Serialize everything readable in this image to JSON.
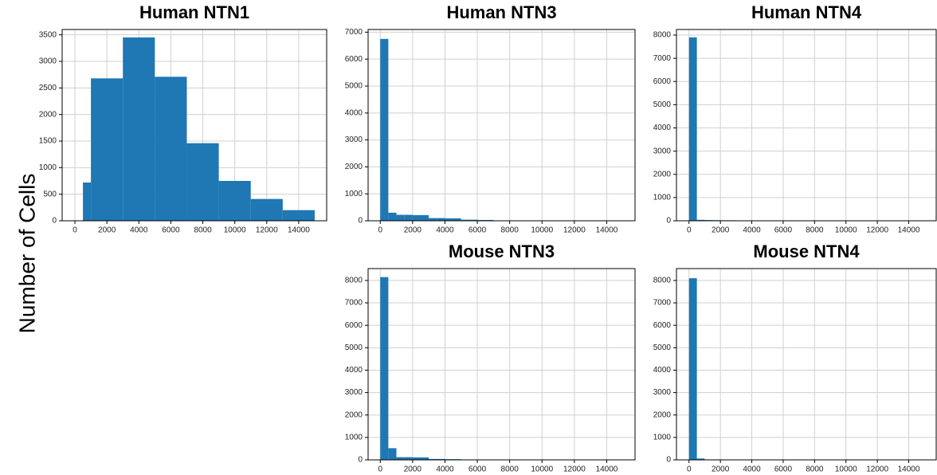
{
  "ylabel": "Number of Cells",
  "chart_data": [
    {
      "type": "histogram",
      "title": "Human NTN1",
      "color": "#1f77b4",
      "grid": true,
      "bins": [
        500,
        1000,
        3000,
        5000,
        7000,
        9000,
        11000,
        13000,
        15000
      ],
      "values": [
        720,
        2680,
        3450,
        2710,
        1460,
        750,
        410,
        200
      ],
      "xlim": [
        -800,
        15750
      ],
      "ylim": [
        0,
        3600
      ],
      "xticks": [
        0,
        2000,
        4000,
        6000,
        8000,
        10000,
        12000,
        14000
      ],
      "yticks": [
        0,
        500,
        1000,
        1500,
        2000,
        2500,
        3000,
        3500
      ]
    },
    {
      "type": "histogram",
      "title": "Human NTN3",
      "color": "#1f77b4",
      "grid": true,
      "bins": [
        0,
        500,
        1000,
        1500,
        2000,
        2500,
        3000,
        3500,
        4000,
        4500,
        5000,
        5500,
        6000,
        6500,
        7000,
        7500,
        8000,
        8500,
        9000,
        9500,
        10000,
        10500,
        11000,
        11500,
        12000,
        12500,
        13000,
        13500,
        14000,
        14500,
        15000
      ],
      "values": [
        6750,
        300,
        220,
        220,
        210,
        210,
        100,
        100,
        90,
        90,
        40,
        40,
        30,
        30,
        10,
        10,
        5,
        5,
        5,
        5,
        3,
        3,
        2,
        2,
        2,
        2,
        1,
        1,
        1,
        1
      ],
      "xlim": [
        -750,
        15750
      ],
      "ylim": [
        0,
        7100
      ],
      "xticks": [
        0,
        2000,
        4000,
        6000,
        8000,
        10000,
        12000,
        14000
      ],
      "yticks": [
        0,
        1000,
        2000,
        3000,
        4000,
        5000,
        6000,
        7000
      ]
    },
    {
      "type": "histogram",
      "title": "Human NTN4",
      "color": "#1f77b4",
      "grid": true,
      "bins": [
        0,
        500,
        1000,
        1500,
        2000,
        2500,
        3000,
        3500,
        4000,
        4500,
        5000,
        5500,
        6000,
        6500,
        7000,
        7500,
        8000,
        8500,
        9000,
        9500,
        10000,
        10500,
        11000,
        11500,
        12000,
        12500,
        13000,
        13500,
        14000,
        14500,
        15000
      ],
      "values": [
        7900,
        40,
        30,
        25,
        20,
        20,
        10,
        10,
        5,
        5,
        3,
        3,
        2,
        2,
        1,
        1,
        1,
        1,
        1,
        1,
        1,
        1,
        1,
        1,
        1,
        1,
        1,
        1,
        1,
        1
      ],
      "xlim": [
        -800,
        15750
      ],
      "ylim": [
        0,
        8240
      ],
      "xticks": [
        0,
        2000,
        4000,
        6000,
        8000,
        10000,
        12000,
        14000
      ],
      "yticks": [
        0,
        1000,
        2000,
        3000,
        4000,
        5000,
        6000,
        7000,
        8000
      ]
    },
    {
      "type": "histogram",
      "title": "Mouse NTN3",
      "color": "#1f77b4",
      "grid": true,
      "bins": [
        0,
        500,
        1000,
        1500,
        2000,
        2500,
        3000,
        3500,
        4000,
        4500,
        5000,
        5500,
        6000,
        6500,
        7000,
        7500,
        8000,
        8500,
        9000,
        9500,
        10000,
        10500,
        11000,
        11500,
        12000,
        12500,
        13000,
        13500,
        14000,
        14500,
        15000
      ],
      "values": [
        8150,
        520,
        120,
        120,
        110,
        110,
        40,
        40,
        30,
        30,
        10,
        10,
        5,
        5,
        3,
        3,
        2,
        2,
        2,
        2,
        1,
        1,
        1,
        1,
        1,
        1,
        1,
        1,
        1,
        1
      ],
      "xlim": [
        -750,
        15750
      ],
      "ylim": [
        0,
        8530
      ],
      "xticks": [
        0,
        2000,
        4000,
        6000,
        8000,
        10000,
        12000,
        14000
      ],
      "yticks": [
        0,
        1000,
        2000,
        3000,
        4000,
        5000,
        6000,
        7000,
        8000
      ]
    },
    {
      "type": "histogram",
      "title": "Mouse NTN4",
      "color": "#1f77b4",
      "grid": true,
      "bins": [
        0,
        500,
        1000,
        1500,
        2000,
        2500,
        3000,
        3500,
        4000,
        4500,
        5000,
        5500,
        6000,
        6500,
        7000,
        7500,
        8000,
        8500,
        9000,
        9500,
        10000,
        10500,
        11000,
        11500,
        12000,
        12500,
        13000,
        13500,
        14000,
        14500,
        15000
      ],
      "values": [
        8100,
        60,
        20,
        20,
        15,
        15,
        10,
        10,
        5,
        5,
        3,
        3,
        2,
        2,
        1,
        1,
        1,
        1,
        1,
        1,
        1,
        1,
        1,
        1,
        1,
        1,
        1,
        1,
        1,
        1
      ],
      "xlim": [
        -800,
        15750
      ],
      "ylim": [
        0,
        8530
      ],
      "xticks": [
        0,
        2000,
        4000,
        6000,
        8000,
        10000,
        12000,
        14000
      ],
      "yticks": [
        0,
        1000,
        2000,
        3000,
        4000,
        5000,
        6000,
        7000,
        8000
      ]
    }
  ]
}
